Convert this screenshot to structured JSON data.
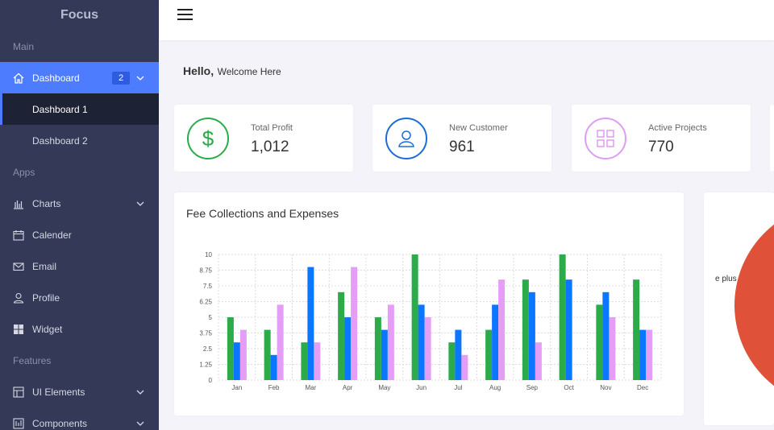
{
  "brand": "Focus",
  "sidebar": {
    "sections": {
      "main": "Main",
      "apps": "Apps",
      "features": "Features"
    },
    "dashboard": {
      "label": "Dashboard",
      "badge": "2"
    },
    "sub_items": [
      "Dashboard 1",
      "Dashboard 2"
    ],
    "items": {
      "charts": "Charts",
      "calender": "Calender",
      "email": "Email",
      "profile": "Profile",
      "widget": "Widget",
      "ui_elements": "UI Elements",
      "components": "Components"
    }
  },
  "greeting": {
    "hello": "Hello,",
    "welcome": "Welcome Here"
  },
  "stats": [
    {
      "label": "Total Profit",
      "value": "1,012",
      "icon": "dollar-icon",
      "color": "#2bab4a"
    },
    {
      "label": "New Customer",
      "value": "961",
      "icon": "user-icon",
      "color": "#1a6dd8"
    },
    {
      "label": "Active Projects",
      "value": "770",
      "icon": "grid-icon",
      "color": "#e09cf0"
    }
  ],
  "chart_card": {
    "title": "Fee Collections and Expenses"
  },
  "pie_card": {
    "partial_label": "e plus"
  },
  "colors": {
    "green": "#2bab4a",
    "blue": "#0b76ff",
    "pink": "#e59ef6",
    "pie": "#e0513a"
  },
  "chart_data": {
    "type": "bar",
    "title": "Fee Collections and Expenses",
    "categories": [
      "Jan",
      "Feb",
      "Mar",
      "Apr",
      "May",
      "Jun",
      "Jul",
      "Aug",
      "Sep",
      "Oct",
      "Nov",
      "Dec"
    ],
    "series": [
      {
        "values": [
          5,
          4,
          3,
          7,
          5,
          10,
          3,
          4,
          8,
          10,
          6,
          8
        ]
      },
      {
        "values": [
          3,
          2,
          9,
          5,
          4,
          6,
          4,
          6,
          7,
          8,
          7,
          4
        ]
      },
      {
        "values": [
          4,
          6,
          3,
          9,
          6,
          5,
          2,
          8,
          3,
          0,
          5,
          4
        ]
      }
    ],
    "ylim": [
      0,
      10
    ],
    "yticks": [
      "0",
      "1.25",
      "2.5",
      "3.75",
      "5",
      "6.25",
      "7.5",
      "8.75",
      "10"
    ],
    "grid": true
  }
}
